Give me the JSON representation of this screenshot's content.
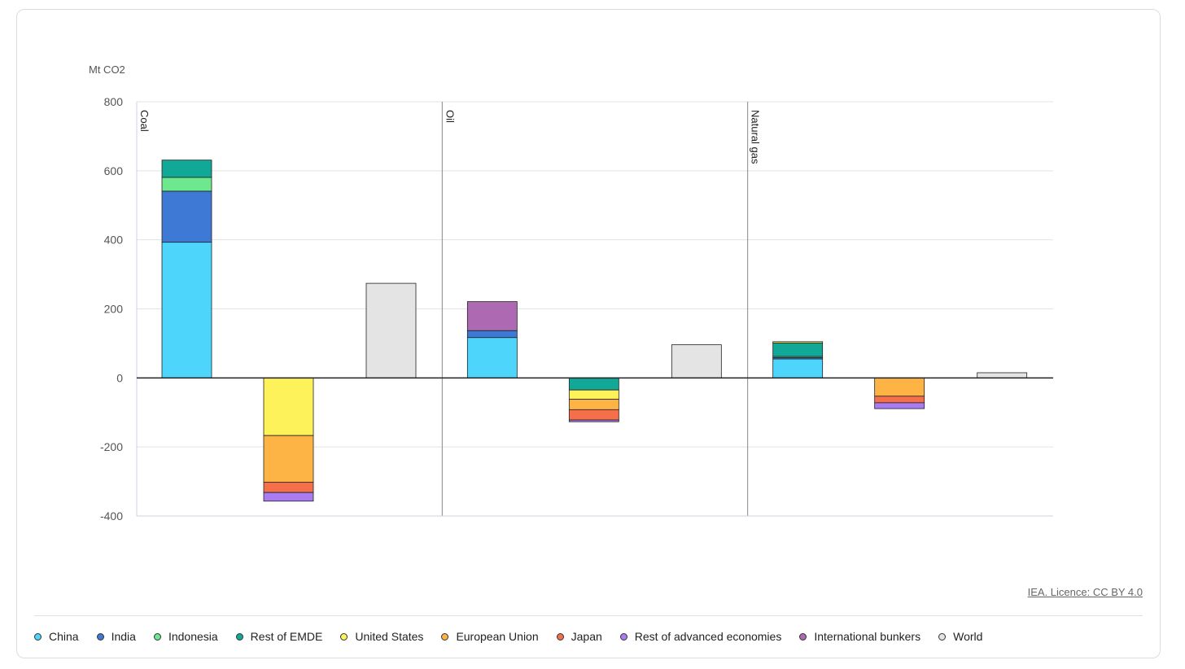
{
  "unit_label": "Mt CO2",
  "licence": "IEA. Licence: CC BY 4.0",
  "colors": {
    "China": "#4dd5fc",
    "India": "#3f79d6",
    "Indonesia": "#6de88e",
    "Rest of EMDE": "#11a898",
    "United States": "#fdf25a",
    "European Union": "#fdb445",
    "Japan": "#f5704a",
    "Rest of advanced economies": "#a97cf2",
    "International bunkers": "#ad6ab2",
    "World": "#e4e4e4"
  },
  "legend": [
    {
      "label": "China",
      "color": "#4dd5fc"
    },
    {
      "label": "India",
      "color": "#3f79d6"
    },
    {
      "label": "Indonesia",
      "color": "#6de88e"
    },
    {
      "label": "Rest of EMDE",
      "color": "#11a898"
    },
    {
      "label": "United States",
      "color": "#fdf25a"
    },
    {
      "label": "European Union",
      "color": "#fdb445"
    },
    {
      "label": "Japan",
      "color": "#f5704a"
    },
    {
      "label": "Rest of advanced economies",
      "color": "#a97cf2"
    },
    {
      "label": "International bunkers",
      "color": "#ad6ab2"
    },
    {
      "label": "World",
      "color": "#e4e4e4"
    }
  ],
  "chart_data": {
    "type": "bar",
    "stacked": true,
    "ylabel": "Mt CO2",
    "ylim": [
      -400,
      800
    ],
    "yticks": [
      800,
      600,
      400,
      200,
      0,
      -200,
      -400
    ],
    "grid": true,
    "legend_position": "bottom",
    "panels": [
      {
        "label": "Coal",
        "bars": [
          {
            "segments": [
              {
                "series": "China",
                "value": 393
              },
              {
                "series": "India",
                "value": 148
              },
              {
                "series": "Indonesia",
                "value": 40
              },
              {
                "series": "Rest of EMDE",
                "value": 50
              }
            ]
          },
          {
            "segments": [
              {
                "series": "United States",
                "value": -167
              },
              {
                "series": "European Union",
                "value": -135
              },
              {
                "series": "Japan",
                "value": -30
              },
              {
                "series": "Rest of advanced economies",
                "value": -25
              }
            ]
          },
          {
            "segments": [
              {
                "series": "World",
                "value": 274
              }
            ]
          }
        ]
      },
      {
        "label": "Oil",
        "bars": [
          {
            "segments": [
              {
                "series": "China",
                "value": 117
              },
              {
                "series": "India",
                "value": 20
              },
              {
                "series": "International bunkers",
                "value": 84
              }
            ]
          },
          {
            "segments": [
              {
                "series": "Rest of EMDE",
                "value": -35
              },
              {
                "series": "United States",
                "value": -27
              },
              {
                "series": "European Union",
                "value": -30
              },
              {
                "series": "Japan",
                "value": -30
              },
              {
                "series": "Rest of advanced economies",
                "value": -5
              }
            ]
          },
          {
            "segments": [
              {
                "series": "World",
                "value": 96
              }
            ]
          }
        ]
      },
      {
        "label": "Natural gas",
        "bars": [
          {
            "segments": [
              {
                "series": "China",
                "value": 55
              },
              {
                "series": "India",
                "value": 4
              },
              {
                "series": "Indonesia",
                "value": 3
              },
              {
                "series": "Rest of EMDE",
                "value": 39
              },
              {
                "series": "United States",
                "value": 4
              }
            ]
          },
          {
            "segments": [
              {
                "series": "European Union",
                "value": -53
              },
              {
                "series": "Japan",
                "value": -19
              },
              {
                "series": "Rest of advanced economies",
                "value": -17
              }
            ]
          },
          {
            "segments": [
              {
                "series": "World",
                "value": 15
              }
            ]
          }
        ]
      }
    ]
  }
}
